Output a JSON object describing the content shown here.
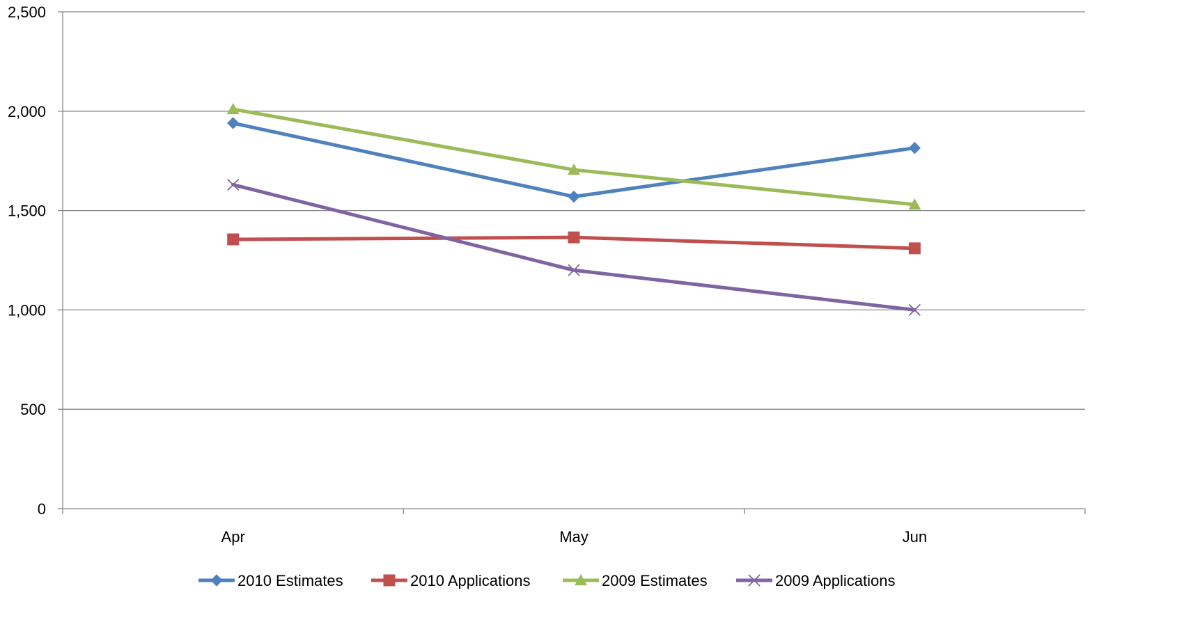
{
  "chart_data": {
    "type": "line",
    "title": "",
    "xlabel": "",
    "ylabel": "",
    "categories": [
      "Apr",
      "May",
      "Jun"
    ],
    "ylim": [
      0,
      2500
    ],
    "yticks": [
      0,
      500,
      1000,
      1500,
      2000,
      2500
    ],
    "ytick_labels": [
      "0",
      "500",
      "1,000",
      "1,500",
      "2,000",
      "2,500"
    ],
    "grid": true,
    "legend_position": "bottom",
    "series": [
      {
        "name": "2010 Estimates",
        "values": [
          1940,
          1570,
          1815
        ],
        "color": "#4F81BD",
        "marker": "diamond"
      },
      {
        "name": "2010 Applications",
        "values": [
          1355,
          1365,
          1310
        ],
        "color": "#C0504D",
        "marker": "square"
      },
      {
        "name": "2009 Estimates",
        "values": [
          2010,
          1705,
          1530
        ],
        "color": "#9BBB59",
        "marker": "triangle"
      },
      {
        "name": "2009 Applications",
        "values": [
          1630,
          1200,
          1000
        ],
        "color": "#8064A2",
        "marker": "x"
      }
    ]
  }
}
